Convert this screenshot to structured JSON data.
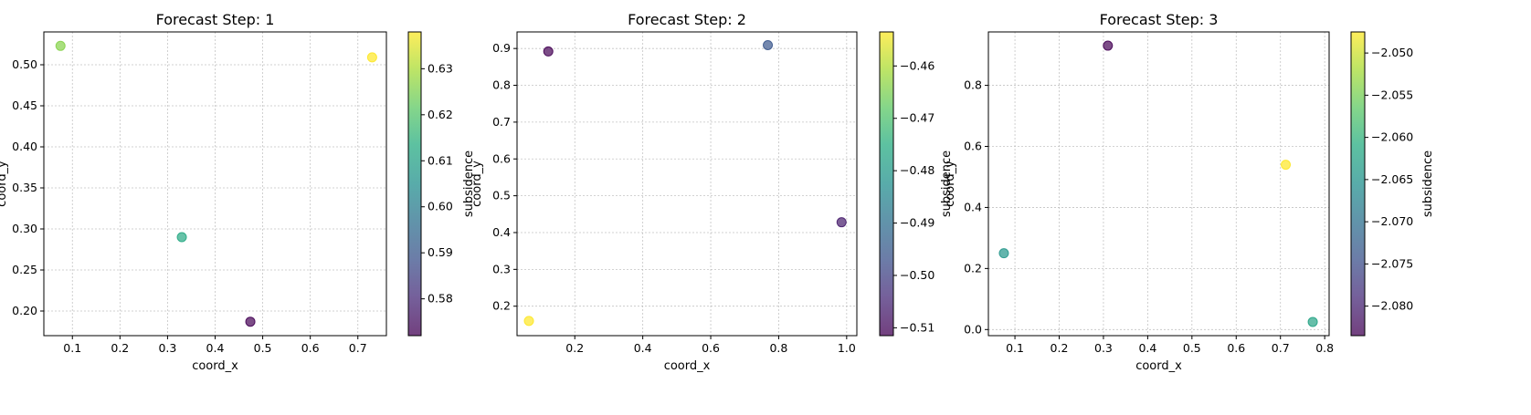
{
  "chart_data": [
    {
      "type": "scatter",
      "title": "Forecast Step: 1",
      "xlabel": "coord_x",
      "ylabel": "coord_y",
      "xlim": [
        0.04,
        0.76
      ],
      "ylim": [
        0.17,
        0.54
      ],
      "xticks": [
        0.1,
        0.2,
        0.3,
        0.4,
        0.5,
        0.6,
        0.7
      ],
      "yticks": [
        0.2,
        0.25,
        0.3,
        0.35,
        0.4,
        0.45,
        0.5
      ],
      "xtick_labels": [
        "0.1",
        "0.2",
        "0.3",
        "0.4",
        "0.5",
        "0.6",
        "0.7"
      ],
      "ytick_labels": [
        "0.20",
        "0.25",
        "0.30",
        "0.35",
        "0.40",
        "0.45",
        "0.50"
      ],
      "grid": true,
      "points": [
        {
          "x": 0.075,
          "y": 0.523,
          "value": 0.626
        },
        {
          "x": 0.73,
          "y": 0.509,
          "value": 0.638
        },
        {
          "x": 0.33,
          "y": 0.29,
          "value": 0.612
        },
        {
          "x": 0.474,
          "y": 0.187,
          "value": 0.572
        }
      ],
      "colorbar": {
        "label": "subsidence",
        "range": [
          0.572,
          0.638
        ],
        "ticks": [
          0.58,
          0.59,
          0.6,
          0.61,
          0.62,
          0.63
        ],
        "tick_labels": [
          "0.58",
          "0.59",
          "0.60",
          "0.61",
          "0.62",
          "0.63"
        ],
        "colormap": "viridis"
      }
    },
    {
      "type": "scatter",
      "title": "Forecast Step: 2",
      "xlabel": "coord_x",
      "ylabel": "coord_y",
      "xlim": [
        0.03,
        1.03
      ],
      "ylim": [
        0.12,
        0.945
      ],
      "xticks": [
        0.2,
        0.4,
        0.6,
        0.8,
        1.0
      ],
      "yticks": [
        0.2,
        0.3,
        0.4,
        0.5,
        0.6,
        0.7,
        0.8,
        0.9
      ],
      "xtick_labels": [
        "0.2",
        "0.4",
        "0.6",
        "0.8",
        "1.0"
      ],
      "ytick_labels": [
        "0.2",
        "0.3",
        "0.4",
        "0.5",
        "0.6",
        "0.7",
        "0.8",
        "0.9"
      ],
      "grid": true,
      "points": [
        {
          "x": 0.122,
          "y": 0.892,
          "value": -0.5115
        },
        {
          "x": 0.768,
          "y": 0.909,
          "value": -0.496
        },
        {
          "x": 0.985,
          "y": 0.428,
          "value": -0.507
        },
        {
          "x": 0.065,
          "y": 0.16,
          "value": -0.4535
        }
      ],
      "colorbar": {
        "label": "subsidence",
        "range": [
          -0.5115,
          -0.4535
        ],
        "ticks": [
          -0.51,
          -0.5,
          -0.49,
          -0.48,
          -0.47,
          -0.46
        ],
        "tick_labels": [
          "−0.51",
          "−0.50",
          "−0.49",
          "−0.48",
          "−0.47",
          "−0.46"
        ],
        "colormap": "viridis"
      }
    },
    {
      "type": "scatter",
      "title": "Forecast Step: 3",
      "xlabel": "coord_x",
      "ylabel": "coord_y",
      "xlim": [
        0.04,
        0.81
      ],
      "ylim": [
        -0.02,
        0.975
      ],
      "xticks": [
        0.1,
        0.2,
        0.3,
        0.4,
        0.5,
        0.6,
        0.7,
        0.8
      ],
      "yticks": [
        0.0,
        0.2,
        0.4,
        0.6,
        0.8
      ],
      "xtick_labels": [
        "0.1",
        "0.2",
        "0.3",
        "0.4",
        "0.5",
        "0.6",
        "0.7",
        "0.8"
      ],
      "ytick_labels": [
        "0.0",
        "0.2",
        "0.4",
        "0.6",
        "0.8"
      ],
      "grid": true,
      "points": [
        {
          "x": 0.31,
          "y": 0.93,
          "value": -2.0835
        },
        {
          "x": 0.712,
          "y": 0.54,
          "value": -2.0475
        },
        {
          "x": 0.075,
          "y": 0.25,
          "value": -2.0645
        },
        {
          "x": 0.773,
          "y": 0.025,
          "value": -2.0625
        }
      ],
      "colorbar": {
        "label": "subsidence",
        "range": [
          -2.0835,
          -2.0475
        ],
        "ticks": [
          -2.08,
          -2.075,
          -2.07,
          -2.065,
          -2.06,
          -2.055,
          -2.05
        ],
        "tick_labels": [
          "−2.080",
          "−2.075",
          "−2.070",
          "−2.065",
          "−2.060",
          "−2.055",
          "−2.050"
        ],
        "colormap": "viridis"
      }
    }
  ]
}
